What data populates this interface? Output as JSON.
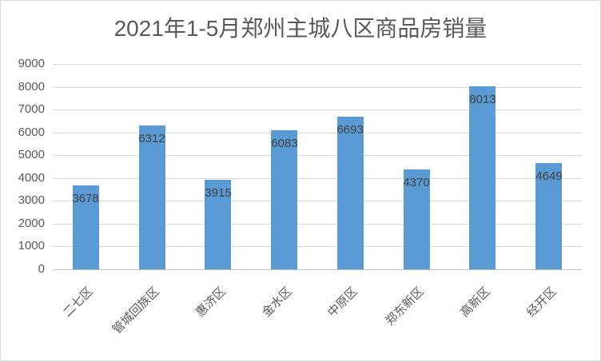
{
  "chart_data": {
    "type": "bar",
    "title": "2021年1-5月郑州主城八区商品房销量",
    "xlabel": "",
    "ylabel": "",
    "categories": [
      "二七区",
      "管城回族区",
      "惠济区",
      "金水区",
      "中原区",
      "郑东新区",
      "高新区",
      "经开区"
    ],
    "values": [
      3678,
      6312,
      3915,
      6083,
      6693,
      4370,
      8013,
      4649
    ],
    "data_labels": [
      "3678",
      "6312",
      "3915",
      "6083",
      "6693",
      "4370",
      "8013",
      "4649"
    ],
    "ylim": [
      0,
      9000
    ],
    "yticks": [
      "9000",
      "8000",
      "7000",
      "6000",
      "5000",
      "4000",
      "3000",
      "2000",
      "1000",
      "0"
    ],
    "grid": true,
    "legend": null,
    "bar_color": "#5b9bd5"
  }
}
